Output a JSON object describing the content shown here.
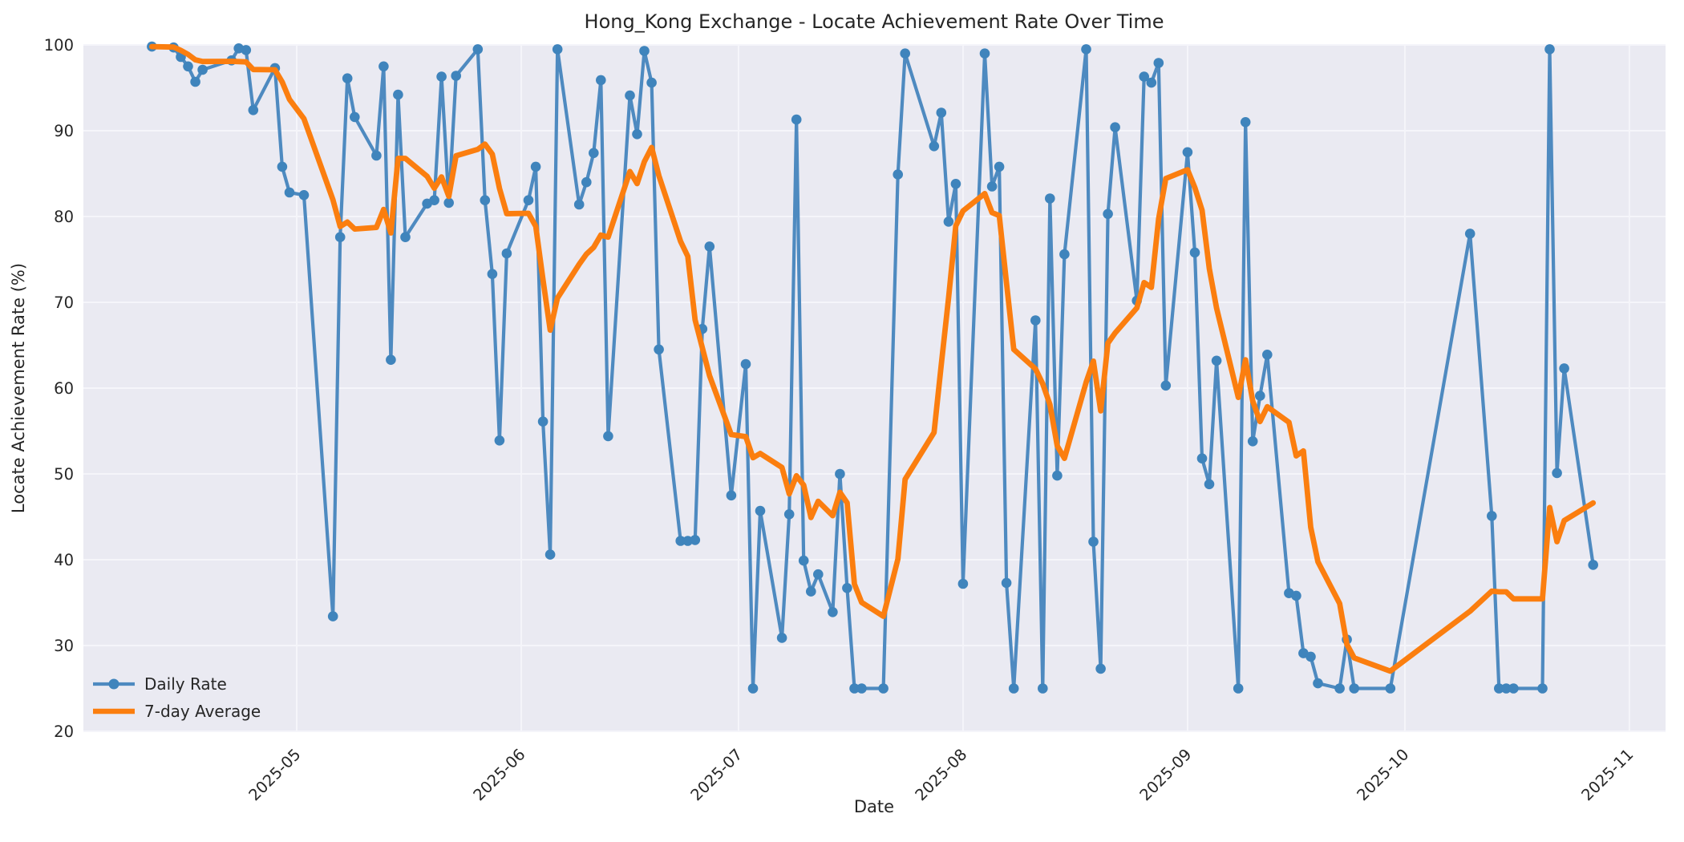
{
  "chart_data": {
    "type": "line",
    "title": "Hong_Kong Exchange - Locate Achievement Rate Over Time",
    "xlabel": "Date",
    "ylabel": "Locate Achievement Rate (%)",
    "ylim": [
      20,
      100
    ],
    "yticks": [
      20,
      30,
      40,
      50,
      60,
      70,
      80,
      90,
      100
    ],
    "xticks": [
      {
        "label": "2025-05",
        "date": "2025-05-01"
      },
      {
        "label": "2025-06",
        "date": "2025-06-01"
      },
      {
        "label": "2025-07",
        "date": "2025-07-01"
      },
      {
        "label": "2025-08",
        "date": "2025-08-01"
      },
      {
        "label": "2025-09",
        "date": "2025-09-01"
      },
      {
        "label": "2025-10",
        "date": "2025-10-01"
      },
      {
        "label": "2025-11",
        "date": "2025-11-01"
      }
    ],
    "grid": true,
    "legend_position": "lower left",
    "series": [
      {
        "name": "Daily Rate",
        "type": "line+markers",
        "color": "#4E8AC0",
        "marker_color": "#3F84BC",
        "x": [
          "2025-04-11",
          "2025-04-14",
          "2025-04-15",
          "2025-04-16",
          "2025-04-17",
          "2025-04-18",
          "2025-04-22",
          "2025-04-23",
          "2025-04-24",
          "2025-04-25",
          "2025-04-28",
          "2025-04-29",
          "2025-04-30",
          "2025-05-02",
          "2025-05-06",
          "2025-05-07",
          "2025-05-08",
          "2025-05-09",
          "2025-05-12",
          "2025-05-13",
          "2025-05-14",
          "2025-05-15",
          "2025-05-16",
          "2025-05-19",
          "2025-05-20",
          "2025-05-21",
          "2025-05-22",
          "2025-05-23",
          "2025-05-26",
          "2025-05-27",
          "2025-05-28",
          "2025-05-29",
          "2025-05-30",
          "2025-06-02",
          "2025-06-03",
          "2025-06-04",
          "2025-06-05",
          "2025-06-06",
          "2025-06-09",
          "2025-06-10",
          "2025-06-11",
          "2025-06-12",
          "2025-06-13",
          "2025-06-16",
          "2025-06-17",
          "2025-06-18",
          "2025-06-19",
          "2025-06-20",
          "2025-06-23",
          "2025-06-24",
          "2025-06-25",
          "2025-06-26",
          "2025-06-27",
          "2025-06-30",
          "2025-07-02",
          "2025-07-03",
          "2025-07-04",
          "2025-07-07",
          "2025-07-08",
          "2025-07-09",
          "2025-07-10",
          "2025-07-11",
          "2025-07-12",
          "2025-07-14",
          "2025-07-15",
          "2025-07-16",
          "2025-07-17",
          "2025-07-18",
          "2025-07-21",
          "2025-07-23",
          "2025-07-24",
          "2025-07-28",
          "2025-07-29",
          "2025-07-30",
          "2025-07-31",
          "2025-08-01",
          "2025-08-04",
          "2025-08-05",
          "2025-08-06",
          "2025-08-07",
          "2025-08-08",
          "2025-08-11",
          "2025-08-12",
          "2025-08-13",
          "2025-08-14",
          "2025-08-15",
          "2025-08-18",
          "2025-08-19",
          "2025-08-20",
          "2025-08-21",
          "2025-08-22",
          "2025-08-25",
          "2025-08-26",
          "2025-08-27",
          "2025-08-28",
          "2025-08-29",
          "2025-09-01",
          "2025-09-02",
          "2025-09-03",
          "2025-09-04",
          "2025-09-05",
          "2025-09-08",
          "2025-09-09",
          "2025-09-10",
          "2025-09-11",
          "2025-09-12",
          "2025-09-15",
          "2025-09-16",
          "2025-09-17",
          "2025-09-18",
          "2025-09-19",
          "2025-09-22",
          "2025-09-23",
          "2025-09-24",
          "2025-09-29",
          "2025-10-10",
          "2025-10-13",
          "2025-10-14",
          "2025-10-15",
          "2025-10-16",
          "2025-10-20",
          "2025-10-21",
          "2025-10-22",
          "2025-10-23",
          "2025-10-27"
        ],
        "y": [
          99.8,
          99.7,
          98.6,
          97.5,
          95.7,
          97.1,
          98.2,
          99.6,
          99.4,
          92.4,
          97.3,
          85.8,
          82.8,
          82.5,
          33.4,
          77.6,
          96.1,
          91.6,
          87.1,
          97.5,
          63.3,
          94.2,
          77.6,
          81.5,
          81.9,
          96.3,
          81.6,
          96.4,
          99.5,
          81.9,
          73.3,
          53.9,
          75.7,
          81.9,
          85.8,
          56.1,
          40.6,
          99.5,
          81.4,
          84.0,
          87.4,
          95.9,
          54.4,
          94.1,
          89.6,
          99.3,
          95.6,
          64.5,
          42.2,
          42.2,
          42.3,
          66.9,
          76.5,
          47.5,
          62.8,
          25.0,
          45.7,
          30.9,
          45.3,
          91.3,
          39.9,
          36.3,
          38.3,
          33.9,
          50.0,
          36.7,
          25.0,
          25.0,
          25.0,
          84.9,
          99.0,
          88.2,
          92.1,
          79.4,
          83.8,
          37.2,
          99.0,
          83.5,
          85.8,
          37.3,
          25.0,
          67.9,
          25.0,
          82.1,
          49.8,
          75.6,
          99.5,
          42.1,
          27.3,
          80.3,
          90.4,
          70.2,
          96.3,
          95.6,
          97.9,
          60.3,
          87.5,
          75.8,
          51.8,
          48.8,
          63.2,
          25.0,
          91.0,
          53.8,
          59.1,
          63.9,
          36.1,
          35.8,
          29.1,
          28.7,
          25.6,
          25.0,
          30.7,
          25.0,
          25.0,
          78.0,
          45.1,
          25.0,
          25.0,
          25.0,
          25.0,
          99.5,
          50.1,
          62.3,
          39.4
        ]
      },
      {
        "name": "7-day Average",
        "type": "line",
        "color": "#FB7E0F",
        "derived": "rolling_mean_of_series_0",
        "window": 7
      }
    ],
    "colors": {
      "plot_background": "#EAEAF2",
      "grid": "#F5F5FA",
      "text": "#262626"
    }
  }
}
